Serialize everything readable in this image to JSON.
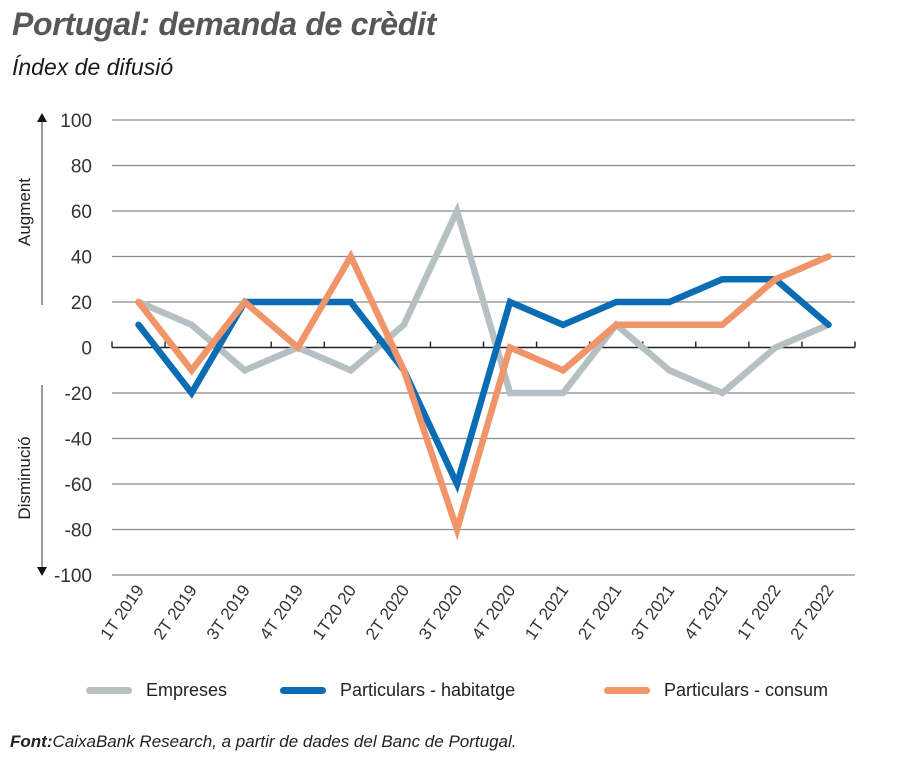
{
  "title": "Portugal: demanda de crèdit",
  "subtitle": "Índex de difusió",
  "source_label": "Font:",
  "source_text": "CaixaBank Research, a partir de dades del Banc de Portugal.",
  "chart_data": {
    "type": "line",
    "title": "Portugal: demanda de crèdit",
    "subtitle": "Índex de difusió",
    "xlabel": "",
    "ylabel_up": "Augment",
    "ylabel_down": "Disminució",
    "ylim": [
      -100,
      100
    ],
    "yticks": [
      100,
      80,
      60,
      40,
      20,
      0,
      -20,
      -40,
      -60,
      -80,
      -100
    ],
    "grid": true,
    "legend_position": "bottom",
    "categories": [
      "1T 2019",
      "2T 2019",
      "3T 2019",
      "4T 2019",
      "1T20 20",
      "2T 2020",
      "3T 2020",
      "4T 2020",
      "1T 2021",
      "2T 2021",
      "3T 2021",
      "4T 2021",
      "1T 2022",
      "2T 2022"
    ],
    "series": [
      {
        "name": "Empreses",
        "color": "#b6c0c3",
        "values": [
          20,
          10,
          -10,
          0,
          -10,
          10,
          60,
          -20,
          -20,
          10,
          -10,
          -20,
          0,
          10
        ]
      },
      {
        "name": "Particulars - habitatge",
        "color": "#0a6cb3",
        "values": [
          10,
          -20,
          20,
          20,
          20,
          -10,
          -60,
          20,
          10,
          20,
          20,
          30,
          30,
          10
        ]
      },
      {
        "name": "Particulars - consum",
        "color": "#f0956a",
        "values": [
          20,
          -10,
          20,
          0,
          40,
          -10,
          -80,
          0,
          -10,
          10,
          10,
          10,
          30,
          40
        ]
      }
    ]
  }
}
